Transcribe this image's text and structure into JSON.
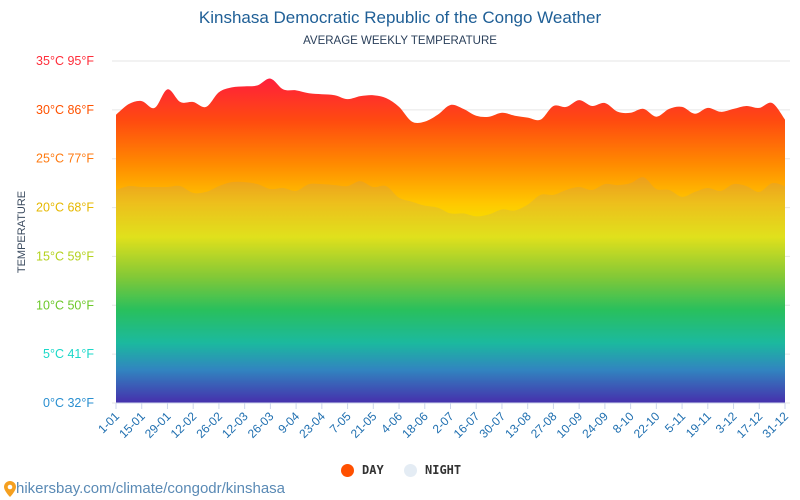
{
  "chart_data": {
    "type": "area",
    "title": "Kinshasa Democratic Republic of the Congo Weather",
    "subtitle": "AVERAGE WEEKLY TEMPERATURE",
    "ylabel": "TEMPERATURE",
    "ylim": [
      0,
      35
    ],
    "grid": true,
    "legend_placement": "bottom",
    "y_ticks": [
      {
        "value": 35,
        "label": "35°C 95°F",
        "color": "#ff2d3a"
      },
      {
        "value": 30,
        "label": "30°C 86°F",
        "color": "#ff5200"
      },
      {
        "value": 25,
        "label": "25°C 77°F",
        "color": "#ff7a10"
      },
      {
        "value": 20,
        "label": "20°C 68°F",
        "color": "#e6b800"
      },
      {
        "value": 15,
        "label": "15°C 59°F",
        "color": "#b4d21e"
      },
      {
        "value": 10,
        "label": "10°C 50°F",
        "color": "#6cc82a"
      },
      {
        "value": 5,
        "label": "5°C 41°F",
        "color": "#1ad8c8"
      },
      {
        "value": 0,
        "label": "0°C 32°F",
        "color": "#2a8fd0"
      }
    ],
    "x_tick_labels": [
      "1-01",
      "15-01",
      "29-01",
      "12-02",
      "26-02",
      "12-03",
      "26-03",
      "9-04",
      "23-04",
      "7-05",
      "21-05",
      "4-06",
      "18-06",
      "2-07",
      "16-07",
      "30-07",
      "13-08",
      "27-08",
      "10-09",
      "24-09",
      "8-10",
      "22-10",
      "5-11",
      "19-11",
      "3-12",
      "17-12",
      "31-12"
    ],
    "series": [
      {
        "name": "DAY",
        "color": "#ff5000",
        "values": [
          29.5,
          30.6,
          30.9,
          30.2,
          32.1,
          30.8,
          30.8,
          30.3,
          31.8,
          32.3,
          32.4,
          32.5,
          33.2,
          32.1,
          32.0,
          31.7,
          31.6,
          31.5,
          31.1,
          31.4,
          31.5,
          31.2,
          30.3,
          28.8,
          28.8,
          29.5,
          30.5,
          30.1,
          29.4,
          29.3,
          29.7,
          29.4,
          29.2,
          29.0,
          30.4,
          30.3,
          31.0,
          30.4,
          30.7,
          29.8,
          29.7,
          30.1,
          29.3,
          30.1,
          30.3,
          29.6,
          30.2,
          29.8,
          30.1,
          30.4,
          30.2,
          30.7,
          29.0
        ]
      },
      {
        "name": "NIGHT",
        "color": "#e4ecf4",
        "values": [
          21.8,
          22.2,
          22.1,
          22.1,
          22.1,
          22.2,
          21.5,
          21.6,
          22.2,
          22.6,
          22.6,
          22.4,
          21.9,
          22.0,
          21.7,
          22.4,
          22.4,
          22.3,
          22.2,
          22.7,
          22.1,
          22.2,
          21.0,
          20.6,
          20.2,
          20.0,
          19.4,
          19.4,
          19.1,
          19.3,
          19.8,
          19.7,
          20.3,
          21.3,
          21.3,
          21.8,
          22.1,
          21.8,
          22.4,
          22.3,
          22.5,
          23.1,
          21.9,
          21.8,
          21.1,
          21.6,
          22.0,
          21.7,
          22.4,
          22.2,
          21.6,
          22.5,
          22.2
        ]
      }
    ]
  },
  "source": "hikersbay.com/climate/congodr/kinshasa",
  "icons": {
    "source": "map-pin-icon"
  }
}
